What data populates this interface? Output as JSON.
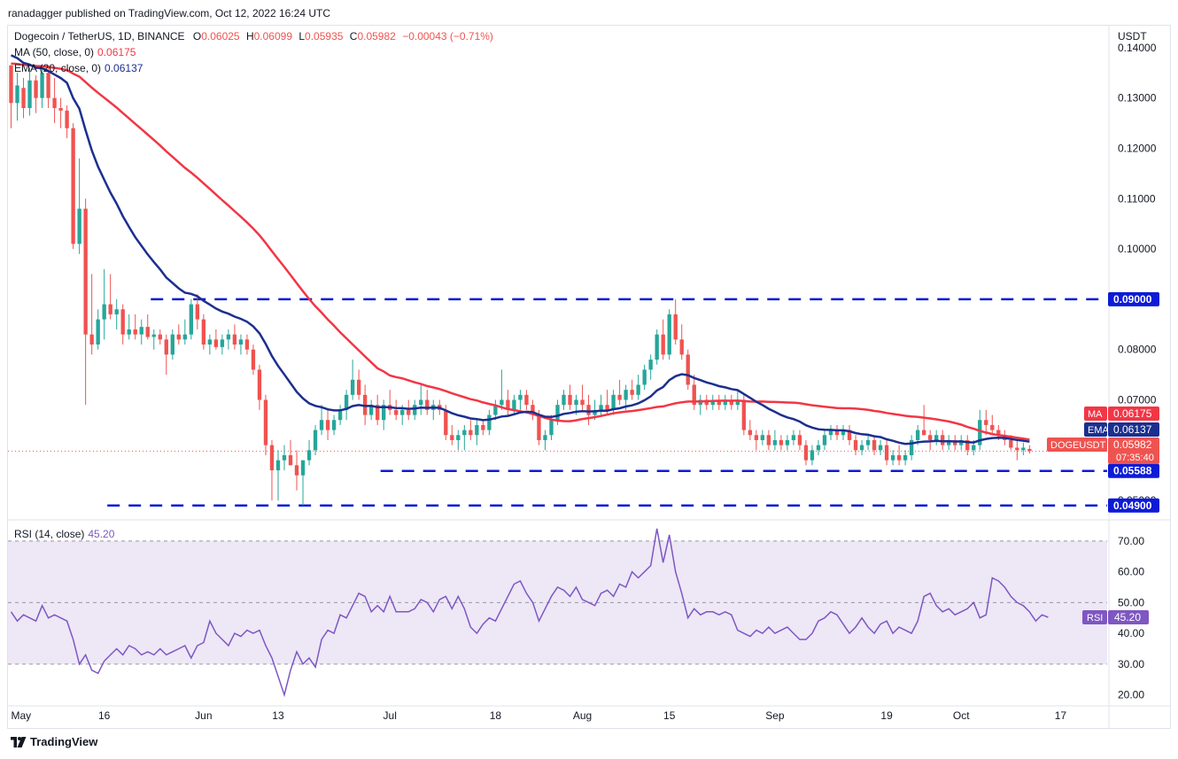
{
  "header": {
    "published": "ranadagger published on TradingView.com, Oct 12, 2022 16:24 UTC"
  },
  "legend": {
    "symbol": "Dogecoin / TetherUS, 1D, BINANCE",
    "o_label": "O",
    "o": "0.06025",
    "h_label": "H",
    "h": "0.06099",
    "l_label": "L",
    "l": "0.05935",
    "c_label": "C",
    "c": "0.05982",
    "change": "−0.00043 (−0.71%)",
    "ma": "MA (50, close, 0)",
    "ma_value": "0.06175",
    "ema": "EMA (20, close, 0)",
    "ema_value": "0.06137",
    "rsi": "RSI (14, close)",
    "rsi_value": "45.20"
  },
  "footer": {
    "brand": "TradingView"
  },
  "colors": {
    "up": "#26a69a",
    "down": "#ef5350",
    "ma": "#f23645",
    "ema": "#1c2f8f",
    "hline": "#0d1bd6",
    "rsi": "#7e57c2",
    "rsi_band": "#ede7f6",
    "price_tag": "#ef5350"
  },
  "chart_data": [
    {
      "type": "candlestick",
      "y_axis_label": "USDT",
      "ylim": [
        0.0465,
        0.1442
      ],
      "y_ticks": [
        "0.14000",
        "0.13000",
        "0.12000",
        "0.11000",
        "0.10000",
        "0.09000",
        "0.08000",
        "0.07000",
        "0.06000",
        "0.05000"
      ],
      "x_ticks": [
        {
          "label": "May",
          "day": 0
        },
        {
          "label": "16",
          "day": 15
        },
        {
          "label": "Jun",
          "day": 31
        },
        {
          "label": "13",
          "day": 43
        },
        {
          "label": "Jul",
          "day": 61
        },
        {
          "label": "18",
          "day": 78
        },
        {
          "label": "Aug",
          "day": 92
        },
        {
          "label": "15",
          "day": 106
        },
        {
          "label": "Sep",
          "day": 123
        },
        {
          "label": "19",
          "day": 141
        },
        {
          "label": "Oct",
          "day": 153
        },
        {
          "label": "17",
          "day": 169
        }
      ],
      "x_range": [
        0,
        177
      ],
      "horizontal_levels": [
        {
          "value": 0.09,
          "label": "0.09000",
          "from_day": 23
        },
        {
          "value": 0.05588,
          "label": "0.05588",
          "from_day": 60
        },
        {
          "value": 0.049,
          "label": "0.04900",
          "from_day": 16
        }
      ],
      "tags": [
        {
          "name": "MA",
          "label": "MA",
          "value": "0.06175",
          "price": 0.06175,
          "color": "#f23645"
        },
        {
          "name": "EMA",
          "label": "EMA",
          "value": "0.06137",
          "price": 0.06137,
          "color": "#1c2f8f"
        },
        {
          "name": "DOGEUSDT",
          "label": "DOGEUSDT",
          "value": "0.05982",
          "price": 0.05982,
          "countdown": "07:35:40",
          "color": "#ef5350"
        }
      ],
      "last_price": 0.05982,
      "ma_start": 0.137,
      "ema_start": 0.1395,
      "candles": [
        [
          0.1365,
          0.1365,
          0.124,
          0.129
        ],
        [
          0.129,
          0.135,
          0.1255,
          0.1325
        ],
        [
          0.132,
          0.134,
          0.126,
          0.128
        ],
        [
          0.128,
          0.136,
          0.1265,
          0.1335
        ],
        [
          0.1335,
          0.1345,
          0.127,
          0.13
        ],
        [
          0.13,
          0.136,
          0.128,
          0.135
        ],
        [
          0.135,
          0.1365,
          0.128,
          0.13
        ],
        [
          0.13,
          0.134,
          0.125,
          0.128
        ],
        [
          0.128,
          0.13,
          0.124,
          0.1275
        ],
        [
          0.1275,
          0.1285,
          0.122,
          0.124
        ],
        [
          0.124,
          0.125,
          0.1,
          0.101
        ],
        [
          0.101,
          0.118,
          0.099,
          0.108
        ],
        [
          0.108,
          0.11,
          0.069,
          0.083
        ],
        [
          0.083,
          0.095,
          0.079,
          0.081
        ],
        [
          0.081,
          0.088,
          0.08,
          0.086
        ],
        [
          0.086,
          0.096,
          0.082,
          0.089
        ],
        [
          0.089,
          0.095,
          0.086,
          0.087
        ],
        [
          0.087,
          0.09,
          0.084,
          0.088
        ],
        [
          0.088,
          0.089,
          0.081,
          0.083
        ],
        [
          0.083,
          0.087,
          0.082,
          0.084
        ],
        [
          0.084,
          0.087,
          0.082,
          0.083
        ],
        [
          0.083,
          0.086,
          0.081,
          0.0845
        ],
        [
          0.0845,
          0.087,
          0.082,
          0.0825
        ],
        [
          0.0825,
          0.084,
          0.08,
          0.083
        ],
        [
          0.083,
          0.084,
          0.081,
          0.082
        ],
        [
          0.082,
          0.083,
          0.075,
          0.079
        ],
        [
          0.079,
          0.084,
          0.078,
          0.083
        ],
        [
          0.083,
          0.085,
          0.081,
          0.082
        ],
        [
          0.082,
          0.086,
          0.081,
          0.083
        ],
        [
          0.083,
          0.09,
          0.082,
          0.089
        ],
        [
          0.089,
          0.091,
          0.084,
          0.086
        ],
        [
          0.086,
          0.087,
          0.08,
          0.081
        ],
        [
          0.081,
          0.083,
          0.079,
          0.082
        ],
        [
          0.082,
          0.084,
          0.08,
          0.0805
        ],
        [
          0.0805,
          0.083,
          0.079,
          0.082
        ],
        [
          0.082,
          0.084,
          0.08,
          0.083
        ],
        [
          0.083,
          0.085,
          0.08,
          0.081
        ],
        [
          0.081,
          0.083,
          0.079,
          0.082
        ],
        [
          0.082,
          0.083,
          0.079,
          0.08
        ],
        [
          0.08,
          0.081,
          0.075,
          0.076
        ],
        [
          0.076,
          0.077,
          0.068,
          0.07
        ],
        [
          0.07,
          0.071,
          0.059,
          0.061
        ],
        [
          0.061,
          0.062,
          0.05,
          0.056
        ],
        [
          0.056,
          0.06,
          0.05,
          0.058
        ],
        [
          0.058,
          0.061,
          0.056,
          0.059
        ],
        [
          0.059,
          0.062,
          0.057,
          0.057
        ],
        [
          0.057,
          0.06,
          0.052,
          0.055
        ],
        [
          0.055,
          0.058,
          0.049,
          0.058
        ],
        [
          0.058,
          0.062,
          0.057,
          0.06
        ],
        [
          0.06,
          0.065,
          0.059,
          0.064
        ],
        [
          0.064,
          0.069,
          0.063,
          0.066
        ],
        [
          0.066,
          0.068,
          0.062,
          0.064
        ],
        [
          0.064,
          0.067,
          0.063,
          0.066
        ],
        [
          0.066,
          0.069,
          0.065,
          0.068
        ],
        [
          0.068,
          0.072,
          0.066,
          0.071
        ],
        [
          0.071,
          0.078,
          0.07,
          0.074
        ],
        [
          0.074,
          0.076,
          0.07,
          0.071
        ],
        [
          0.071,
          0.073,
          0.065,
          0.067
        ],
        [
          0.067,
          0.07,
          0.066,
          0.069
        ],
        [
          0.069,
          0.071,
          0.065,
          0.066
        ],
        [
          0.066,
          0.07,
          0.064,
          0.069
        ],
        [
          0.069,
          0.072,
          0.067,
          0.068
        ],
        [
          0.068,
          0.07,
          0.066,
          0.067
        ],
        [
          0.067,
          0.069,
          0.065,
          0.068
        ],
        [
          0.068,
          0.07,
          0.066,
          0.067
        ],
        [
          0.067,
          0.07,
          0.066,
          0.069
        ],
        [
          0.069,
          0.073,
          0.067,
          0.07
        ],
        [
          0.07,
          0.072,
          0.067,
          0.068
        ],
        [
          0.068,
          0.07,
          0.066,
          0.069
        ],
        [
          0.069,
          0.07,
          0.067,
          0.068
        ],
        [
          0.068,
          0.069,
          0.062,
          0.063
        ],
        [
          0.063,
          0.065,
          0.061,
          0.062
        ],
        [
          0.062,
          0.064,
          0.06,
          0.063
        ],
        [
          0.063,
          0.065,
          0.06,
          0.064
        ],
        [
          0.064,
          0.066,
          0.062,
          0.063
        ],
        [
          0.063,
          0.066,
          0.061,
          0.065
        ],
        [
          0.065,
          0.066,
          0.063,
          0.064
        ],
        [
          0.064,
          0.068,
          0.063,
          0.067
        ],
        [
          0.067,
          0.07,
          0.066,
          0.069
        ],
        [
          0.069,
          0.076,
          0.068,
          0.07
        ],
        [
          0.07,
          0.072,
          0.067,
          0.068
        ],
        [
          0.068,
          0.071,
          0.067,
          0.07
        ],
        [
          0.07,
          0.072,
          0.068,
          0.071
        ],
        [
          0.071,
          0.072,
          0.068,
          0.069
        ],
        [
          0.069,
          0.07,
          0.066,
          0.067
        ],
        [
          0.067,
          0.068,
          0.061,
          0.062
        ],
        [
          0.062,
          0.064,
          0.06,
          0.063
        ],
        [
          0.063,
          0.067,
          0.062,
          0.066
        ],
        [
          0.066,
          0.07,
          0.065,
          0.069
        ],
        [
          0.069,
          0.072,
          0.068,
          0.071
        ],
        [
          0.071,
          0.073,
          0.068,
          0.069
        ],
        [
          0.069,
          0.071,
          0.067,
          0.07
        ],
        [
          0.07,
          0.073,
          0.068,
          0.069
        ],
        [
          0.069,
          0.071,
          0.065,
          0.067
        ],
        [
          0.067,
          0.07,
          0.066,
          0.068
        ],
        [
          0.068,
          0.071,
          0.067,
          0.069
        ],
        [
          0.069,
          0.072,
          0.067,
          0.068
        ],
        [
          0.068,
          0.072,
          0.067,
          0.071
        ],
        [
          0.071,
          0.074,
          0.069,
          0.07
        ],
        [
          0.07,
          0.073,
          0.068,
          0.072
        ],
        [
          0.072,
          0.074,
          0.07,
          0.071
        ],
        [
          0.071,
          0.075,
          0.07,
          0.073
        ],
        [
          0.073,
          0.077,
          0.072,
          0.076
        ],
        [
          0.076,
          0.079,
          0.074,
          0.078
        ],
        [
          0.078,
          0.084,
          0.077,
          0.083
        ],
        [
          0.083,
          0.086,
          0.078,
          0.079
        ],
        [
          0.079,
          0.088,
          0.078,
          0.087
        ],
        [
          0.087,
          0.09,
          0.081,
          0.082
        ],
        [
          0.082,
          0.085,
          0.078,
          0.079
        ],
        [
          0.079,
          0.08,
          0.072,
          0.073
        ],
        [
          0.073,
          0.075,
          0.068,
          0.069
        ],
        [
          0.069,
          0.071,
          0.067,
          0.07
        ],
        [
          0.07,
          0.071,
          0.068,
          0.069
        ],
        [
          0.069,
          0.071,
          0.068,
          0.07
        ],
        [
          0.07,
          0.071,
          0.068,
          0.069
        ],
        [
          0.069,
          0.071,
          0.068,
          0.07
        ],
        [
          0.07,
          0.071,
          0.068,
          0.069
        ],
        [
          0.069,
          0.072,
          0.068,
          0.07
        ],
        [
          0.07,
          0.071,
          0.063,
          0.064
        ],
        [
          0.064,
          0.066,
          0.062,
          0.063
        ],
        [
          0.063,
          0.064,
          0.06,
          0.062
        ],
        [
          0.062,
          0.064,
          0.061,
          0.063
        ],
        [
          0.063,
          0.064,
          0.06,
          0.061
        ],
        [
          0.061,
          0.064,
          0.06,
          0.062
        ],
        [
          0.062,
          0.063,
          0.06,
          0.061
        ],
        [
          0.061,
          0.063,
          0.06,
          0.062
        ],
        [
          0.062,
          0.064,
          0.061,
          0.063
        ],
        [
          0.063,
          0.064,
          0.06,
          0.061
        ],
        [
          0.061,
          0.062,
          0.057,
          0.058
        ],
        [
          0.058,
          0.061,
          0.057,
          0.06
        ],
        [
          0.06,
          0.062,
          0.059,
          0.061
        ],
        [
          0.061,
          0.064,
          0.06,
          0.063
        ],
        [
          0.063,
          0.065,
          0.062,
          0.064
        ],
        [
          0.064,
          0.065,
          0.062,
          0.063
        ],
        [
          0.063,
          0.065,
          0.062,
          0.064
        ],
        [
          0.064,
          0.065,
          0.061,
          0.062
        ],
        [
          0.062,
          0.063,
          0.059,
          0.06
        ],
        [
          0.06,
          0.062,
          0.059,
          0.061
        ],
        [
          0.061,
          0.063,
          0.06,
          0.062
        ],
        [
          0.062,
          0.063,
          0.059,
          0.06
        ],
        [
          0.06,
          0.062,
          0.059,
          0.061
        ],
        [
          0.061,
          0.062,
          0.057,
          0.058
        ],
        [
          0.058,
          0.06,
          0.057,
          0.059
        ],
        [
          0.059,
          0.061,
          0.057,
          0.058
        ],
        [
          0.058,
          0.06,
          0.057,
          0.059
        ],
        [
          0.059,
          0.063,
          0.058,
          0.062
        ],
        [
          0.062,
          0.065,
          0.061,
          0.064
        ],
        [
          0.064,
          0.069,
          0.063,
          0.063
        ],
        [
          0.063,
          0.064,
          0.06,
          0.062
        ],
        [
          0.062,
          0.064,
          0.061,
          0.063
        ],
        [
          0.063,
          0.064,
          0.06,
          0.061
        ],
        [
          0.061,
          0.063,
          0.06,
          0.062
        ],
        [
          0.062,
          0.063,
          0.06,
          0.061
        ],
        [
          0.061,
          0.063,
          0.06,
          0.062
        ],
        [
          0.062,
          0.063,
          0.059,
          0.06
        ],
        [
          0.06,
          0.062,
          0.059,
          0.061
        ],
        [
          0.061,
          0.068,
          0.06,
          0.066
        ],
        [
          0.066,
          0.068,
          0.063,
          0.065
        ],
        [
          0.065,
          0.067,
          0.063,
          0.064
        ],
        [
          0.064,
          0.065,
          0.062,
          0.063
        ],
        [
          0.063,
          0.064,
          0.061,
          0.062
        ],
        [
          0.062,
          0.063,
          0.06,
          0.0605
        ],
        [
          0.0605,
          0.062,
          0.058,
          0.06
        ],
        [
          0.06,
          0.0615,
          0.059,
          0.0605
        ],
        [
          0.06025,
          0.06099,
          0.05935,
          0.05982
        ]
      ]
    },
    {
      "type": "line",
      "name": "RSI (14, close)",
      "ylim": [
        17,
        76
      ],
      "band": [
        30,
        70
      ],
      "mid": 50,
      "y_ticks": [
        "70.00",
        "60.00",
        "50.00",
        "40.00",
        "30.00",
        "20.00"
      ],
      "tag": {
        "label": "RSI",
        "value": "45.20",
        "price": 45.2
      },
      "values": [
        47,
        44,
        46,
        45,
        44,
        49,
        45,
        46,
        45,
        44,
        38,
        30,
        33,
        28,
        27,
        31,
        33,
        35,
        33,
        36,
        35,
        33,
        34,
        33,
        35,
        33,
        34,
        35,
        36,
        32,
        36,
        37,
        44,
        40,
        38,
        36,
        40,
        39,
        41,
        40,
        41,
        36,
        32,
        26,
        20,
        28,
        34,
        30,
        32,
        29,
        38,
        41,
        40,
        46,
        45,
        49,
        53,
        52,
        47,
        49,
        47,
        52,
        47,
        47,
        47,
        48,
        51,
        50,
        47,
        51,
        52,
        48,
        52,
        48,
        42,
        40,
        43,
        45,
        44,
        48,
        52,
        56,
        57,
        53,
        50,
        44,
        48,
        52,
        55,
        54,
        52,
        55,
        51,
        50,
        49,
        53,
        54,
        52,
        56,
        55,
        60,
        58,
        60,
        62,
        74,
        63,
        72,
        60,
        53,
        45,
        48,
        46,
        47,
        47,
        46,
        47,
        46,
        41,
        40,
        39,
        41,
        40,
        42,
        40,
        41,
        42,
        40,
        38,
        38,
        40,
        44,
        45,
        47,
        46,
        43,
        40,
        42,
        45,
        42,
        40,
        43,
        44,
        40,
        42,
        41,
        40,
        44,
        52,
        53,
        49,
        47,
        48,
        46,
        47,
        48,
        50,
        45,
        46,
        58,
        57,
        55,
        52,
        50,
        49,
        47,
        44,
        46,
        45.2
      ]
    }
  ]
}
